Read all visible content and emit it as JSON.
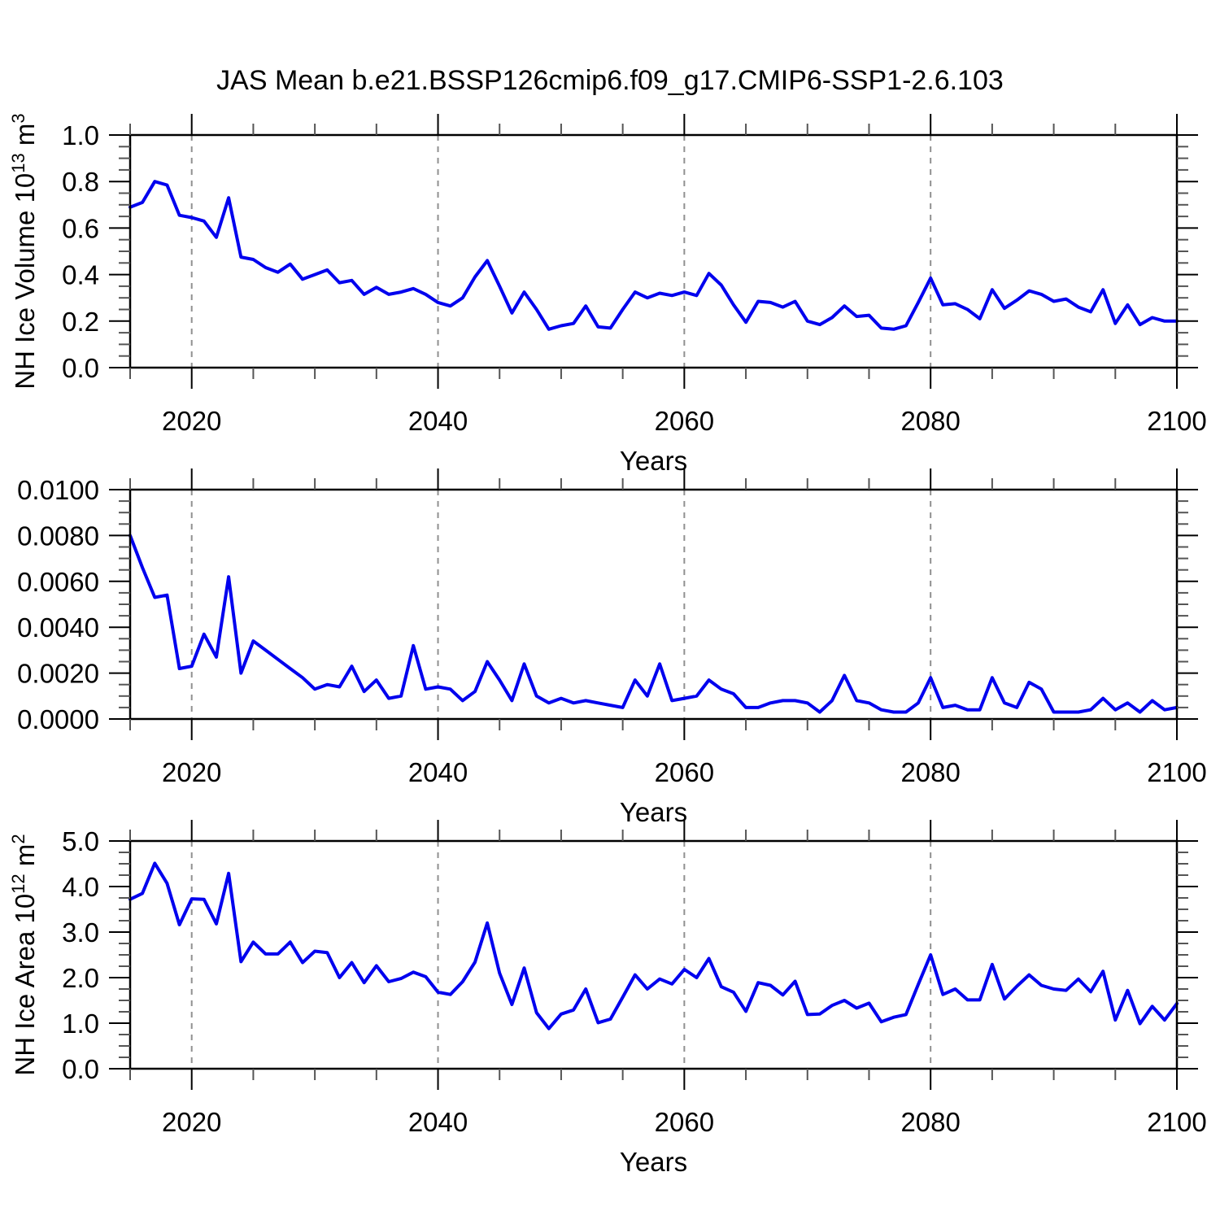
{
  "title": "JAS Mean b.e21.BSSP126cmip6.f09_g17.CMIP6-SSP1-2.6.103",
  "colors": {
    "line": "#0000ee",
    "axis": "#000000",
    "grid": "#909090",
    "minor_tick": "#555555",
    "text": "#000000",
    "background": "#ffffff"
  },
  "chart_data": [
    {
      "type": "line",
      "panel": 1,
      "title": "",
      "ylabel": "NH Ice Volume 10^13 m^3",
      "ylabel_segments": [
        {
          "t": "NH Ice Volume 10"
        },
        {
          "t": "13",
          "sup": true
        },
        {
          "t": " m"
        },
        {
          "t": "3",
          "sup": true
        }
      ],
      "xlabel": "Years",
      "x_start": 2015,
      "x_end": 2100,
      "x_step": 1,
      "x_major_ticks": [
        2020,
        2040,
        2060,
        2080,
        2100
      ],
      "x_tick_labels": [
        "2020",
        "2040",
        "2060",
        "2080",
        "2100"
      ],
      "x_minor_step": 5,
      "gridlines_x": [
        2020,
        2040,
        2060,
        2080
      ],
      "ylim": [
        0.0,
        1.0
      ],
      "ytick_step": 0.2,
      "ytick_decimals": 1,
      "yminor_step": 0.05,
      "grid": true,
      "legend": "none",
      "values": [
        0.69,
        0.71,
        0.8,
        0.785,
        0.655,
        0.645,
        0.63,
        0.56,
        0.73,
        0.475,
        0.465,
        0.43,
        0.41,
        0.445,
        0.38,
        0.4,
        0.42,
        0.365,
        0.375,
        0.315,
        0.345,
        0.315,
        0.325,
        0.34,
        0.315,
        0.28,
        0.265,
        0.3,
        0.39,
        0.46,
        0.35,
        0.235,
        0.325,
        0.25,
        0.165,
        0.18,
        0.19,
        0.265,
        0.175,
        0.17,
        0.25,
        0.325,
        0.3,
        0.32,
        0.31,
        0.325,
        0.31,
        0.405,
        0.355,
        0.27,
        0.195,
        0.285,
        0.28,
        0.26,
        0.285,
        0.2,
        0.185,
        0.215,
        0.265,
        0.22,
        0.225,
        0.17,
        0.165,
        0.18,
        0.28,
        0.385,
        0.27,
        0.275,
        0.25,
        0.21,
        0.335,
        0.255,
        0.29,
        0.33,
        0.315,
        0.285,
        0.295,
        0.26,
        0.24,
        0.335,
        0.19,
        0.27,
        0.185,
        0.215,
        0.2,
        0.2
      ]
    },
    {
      "type": "line",
      "panel": 2,
      "title": "",
      "ylabel": "",
      "ylabel_segments": [],
      "xlabel": "Years",
      "x_start": 2015,
      "x_end": 2100,
      "x_step": 1,
      "x_major_ticks": [
        2020,
        2040,
        2060,
        2080,
        2100
      ],
      "x_tick_labels": [
        "2020",
        "2040",
        "2060",
        "2080",
        "2100"
      ],
      "x_minor_step": 5,
      "gridlines_x": [
        2020,
        2040,
        2060,
        2080
      ],
      "ylim": [
        0.0,
        0.01
      ],
      "ytick_step": 0.002,
      "ytick_decimals": 4,
      "yminor_step": 0.0005,
      "grid": true,
      "legend": "none",
      "values": [
        0.008,
        0.0066,
        0.0053,
        0.0054,
        0.0022,
        0.0023,
        0.0037,
        0.0027,
        0.0062,
        0.002,
        0.0034,
        0.003,
        0.0026,
        0.0022,
        0.0018,
        0.0013,
        0.0015,
        0.0014,
        0.0023,
        0.0012,
        0.0017,
        0.0009,
        0.001,
        0.0032,
        0.0013,
        0.0014,
        0.0013,
        0.0008,
        0.0012,
        0.0025,
        0.0017,
        0.0008,
        0.0024,
        0.001,
        0.0007,
        0.0009,
        0.0007,
        0.0008,
        0.0007,
        0.0006,
        0.0005,
        0.0017,
        0.001,
        0.0024,
        0.0008,
        0.0009,
        0.001,
        0.0017,
        0.0013,
        0.0011,
        0.0005,
        0.0005,
        0.0007,
        0.0008,
        0.0008,
        0.0007,
        0.0003,
        0.0008,
        0.0019,
        0.0008,
        0.0007,
        0.0004,
        0.0003,
        0.0003,
        0.0007,
        0.0018,
        0.0005,
        0.0006,
        0.0004,
        0.0004,
        0.0018,
        0.0007,
        0.0005,
        0.0016,
        0.0013,
        0.0003,
        0.0003,
        0.0003,
        0.0004,
        0.0009,
        0.0004,
        0.0007,
        0.0003,
        0.0008,
        0.0004,
        0.0005
      ]
    },
    {
      "type": "line",
      "panel": 3,
      "title": "",
      "ylabel": "NH Ice Area 10^12 m^2",
      "ylabel_segments": [
        {
          "t": "NH Ice Area 10"
        },
        {
          "t": "12",
          "sup": true
        },
        {
          "t": " m"
        },
        {
          "t": "2",
          "sup": true
        }
      ],
      "xlabel": "Years",
      "x_start": 2015,
      "x_end": 2100,
      "x_step": 1,
      "x_major_ticks": [
        2020,
        2040,
        2060,
        2080,
        2100
      ],
      "x_tick_labels": [
        "2020",
        "2040",
        "2060",
        "2080",
        "2100"
      ],
      "x_minor_step": 5,
      "gridlines_x": [
        2020,
        2040,
        2060,
        2080
      ],
      "ylim": [
        0.0,
        5.0
      ],
      "ytick_step": 1.0,
      "ytick_decimals": 1,
      "yminor_step": 0.25,
      "grid": true,
      "legend": "none",
      "values": [
        3.72,
        3.85,
        4.51,
        4.07,
        3.16,
        3.73,
        3.72,
        3.18,
        4.29,
        2.35,
        2.78,
        2.52,
        2.52,
        2.78,
        2.33,
        2.58,
        2.55,
        2.0,
        2.33,
        1.89,
        2.26,
        1.91,
        1.98,
        2.12,
        2.02,
        1.68,
        1.63,
        1.91,
        2.34,
        3.2,
        2.1,
        1.41,
        2.21,
        1.23,
        0.88,
        1.2,
        1.29,
        1.75,
        1.01,
        1.09,
        1.57,
        2.06,
        1.75,
        1.97,
        1.86,
        2.18,
        2.0,
        2.42,
        1.8,
        1.68,
        1.26,
        1.89,
        1.83,
        1.62,
        1.92,
        1.19,
        1.2,
        1.39,
        1.5,
        1.33,
        1.44,
        1.03,
        1.13,
        1.19,
        1.85,
        2.5,
        1.63,
        1.75,
        1.51,
        1.51,
        2.29,
        1.53,
        1.81,
        2.06,
        1.83,
        1.75,
        1.72,
        1.97,
        1.69,
        2.14,
        1.07,
        1.72,
        0.99,
        1.37,
        1.07,
        1.43
      ]
    }
  ]
}
